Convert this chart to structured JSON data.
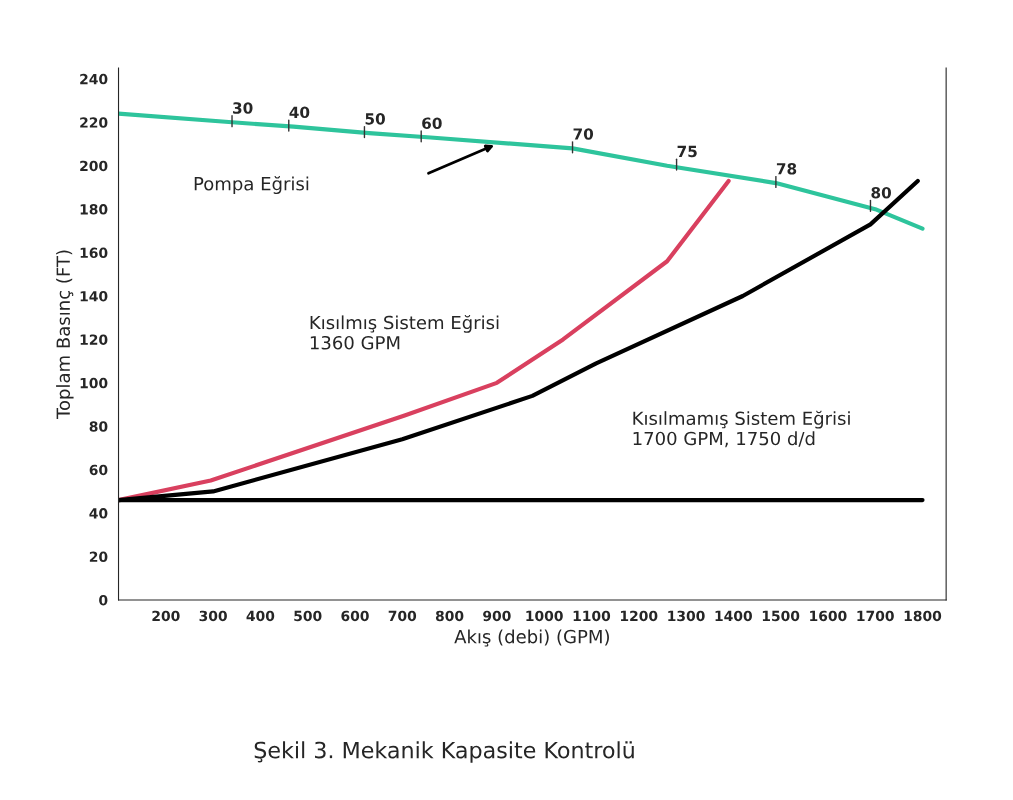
{
  "chart_data": {
    "type": "line",
    "xlabel": "Akış (debi) (GPM)",
    "ylabel": "Toplam Basınç (FT)",
    "xlim": [
      100,
      1850
    ],
    "xticks": [
      200,
      300,
      400,
      500,
      600,
      700,
      800,
      900,
      1000,
      1100,
      1200,
      1300,
      1400,
      1500,
      1600,
      1700,
      1800
    ],
    "ylim": [
      0,
      245
    ],
    "yticks": [
      0,
      20,
      40,
      60,
      80,
      100,
      120,
      140,
      160,
      180,
      200,
      220,
      240
    ],
    "grid": false,
    "legend": false,
    "marker": "none",
    "line_style": "solid",
    "series": [
      {
        "color": "#2ec49c",
        "x": [
          100,
          340,
          470,
          630,
          760,
          1060,
          1260,
          1490,
          1700,
          1800
        ],
        "values": [
          224,
          220,
          218,
          215,
          213,
          208,
          200,
          192,
          180,
          171
        ]
      },
      {
        "color": "#d9405f",
        "x": [
          100,
          295,
          705,
          900,
          1040,
          1260,
          1390
        ],
        "values": [
          46,
          55,
          85,
          100,
          120,
          156,
          193
        ]
      },
      {
        "color": "#000000",
        "x": [
          100,
          300,
          700,
          975,
          1110,
          1420,
          1690,
          1790
        ],
        "values": [
          46,
          50,
          74,
          94,
          109,
          140,
          173,
          193
        ]
      },
      {
        "color": "#000000",
        "x": [
          100,
          1800
        ],
        "values": [
          46,
          46
        ]
      }
    ],
    "annotations": [
      "Pompa Eğrisi",
      "Kısılmış Sistem Eğrisi\n1360 GPM",
      "Kısılmamış Sistem Eğrisi\n1700 GPM, 1750 d/d",
      "Şekil 3. Mekanik Kapasite Kontrolü",
      {
        "text": "30",
        "x": 340,
        "y": 220
      },
      {
        "text": "40",
        "x": 460,
        "y": 218
      },
      {
        "text": "50",
        "x": 620,
        "y": 215
      },
      {
        "text": "60",
        "x": 740,
        "y": 213
      },
      {
        "text": "70",
        "x": 1060,
        "y": 208
      },
      {
        "text": "75",
        "x": 1280,
        "y": 200
      },
      {
        "text": "78",
        "x": 1490,
        "y": 192
      },
      {
        "text": "80",
        "x": 1690,
        "y": 181
      }
    ]
  }
}
